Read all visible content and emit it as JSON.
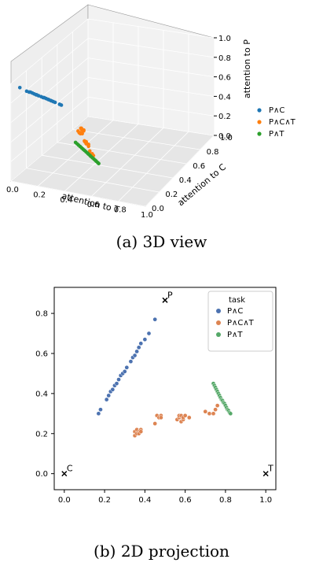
{
  "chart_data": [
    {
      "type": "scatter",
      "view": "3d",
      "caption": "(a) 3D view",
      "xlabel": "attention to T",
      "ylabel": "attention to C",
      "zlabel": "attention to P",
      "xlim": [
        0,
        1
      ],
      "ylim": [
        0,
        1
      ],
      "zlim": [
        0,
        1
      ],
      "xticks": [
        "0.0",
        "0.2",
        "0.4",
        "0.6",
        "0.8",
        "1.0"
      ],
      "yticks": [
        "0.0",
        "0.2",
        "0.4",
        "0.6",
        "0.8",
        "1.0"
      ],
      "zticks": [
        "0.0",
        "0.2",
        "0.4",
        "0.6",
        "0.8",
        "1.0"
      ],
      "grid": true,
      "legend_position": "right",
      "series": [
        {
          "name": "P∧C",
          "color": "#1f77b4"
        },
        {
          "name": "P∧C∧T",
          "color": "#ff7f0e"
        },
        {
          "name": "P∧T",
          "color": "#2ca02c"
        }
      ]
    },
    {
      "type": "scatter",
      "view": "2d",
      "caption": "(b) 2D projection",
      "xlim": [
        -0.05,
        1.05
      ],
      "ylim": [
        -0.08,
        0.93
      ],
      "xticks": [
        0.0,
        0.2,
        0.4,
        0.6,
        0.8,
        1.0
      ],
      "xtick_labels": [
        "0.0",
        "0.2",
        "0.4",
        "0.6",
        "0.8",
        "1.0"
      ],
      "yticks": [
        0.0,
        0.2,
        0.4,
        0.6,
        0.8
      ],
      "ytick_labels": [
        "0.0",
        "0.2",
        "0.4",
        "0.6",
        "0.8"
      ],
      "legend_title": "task",
      "legend_position": "top-right",
      "vertices": [
        {
          "label": "P",
          "x": 0.5,
          "y": 0.866
        },
        {
          "label": "C",
          "x": 0.0,
          "y": 0.0
        },
        {
          "label": "T",
          "x": 1.0,
          "y": 0.0
        }
      ],
      "series": [
        {
          "name": "P∧C",
          "color": "#4c72b0",
          "x": [
            0.17,
            0.18,
            0.21,
            0.22,
            0.23,
            0.24,
            0.25,
            0.26,
            0.27,
            0.28,
            0.29,
            0.3,
            0.31,
            0.33,
            0.34,
            0.35,
            0.36,
            0.37,
            0.38,
            0.4,
            0.42,
            0.45
          ],
          "y": [
            0.3,
            0.32,
            0.37,
            0.39,
            0.41,
            0.42,
            0.44,
            0.45,
            0.47,
            0.49,
            0.5,
            0.51,
            0.53,
            0.56,
            0.58,
            0.59,
            0.61,
            0.63,
            0.65,
            0.67,
            0.7,
            0.77
          ]
        },
        {
          "name": "P∧C∧T",
          "color": "#dd8452",
          "x": [
            0.35,
            0.35,
            0.36,
            0.36,
            0.37,
            0.37,
            0.38,
            0.38,
            0.45,
            0.46,
            0.47,
            0.48,
            0.48,
            0.56,
            0.57,
            0.57,
            0.58,
            0.58,
            0.59,
            0.59,
            0.6,
            0.62,
            0.7,
            0.72,
            0.74,
            0.75,
            0.76
          ],
          "y": [
            0.19,
            0.21,
            0.2,
            0.22,
            0.21,
            0.2,
            0.22,
            0.21,
            0.25,
            0.29,
            0.28,
            0.29,
            0.28,
            0.27,
            0.28,
            0.29,
            0.26,
            0.29,
            0.27,
            0.28,
            0.29,
            0.28,
            0.31,
            0.3,
            0.3,
            0.32,
            0.34
          ]
        },
        {
          "name": "P∧T",
          "color": "#55a868",
          "x": [
            0.74,
            0.745,
            0.75,
            0.755,
            0.76,
            0.765,
            0.77,
            0.775,
            0.78,
            0.785,
            0.79,
            0.795,
            0.8,
            0.805,
            0.81,
            0.815,
            0.82,
            0.825
          ],
          "y": [
            0.45,
            0.44,
            0.43,
            0.42,
            0.41,
            0.4,
            0.39,
            0.38,
            0.37,
            0.365,
            0.355,
            0.35,
            0.34,
            0.33,
            0.32,
            0.315,
            0.305,
            0.3
          ]
        }
      ]
    }
  ]
}
